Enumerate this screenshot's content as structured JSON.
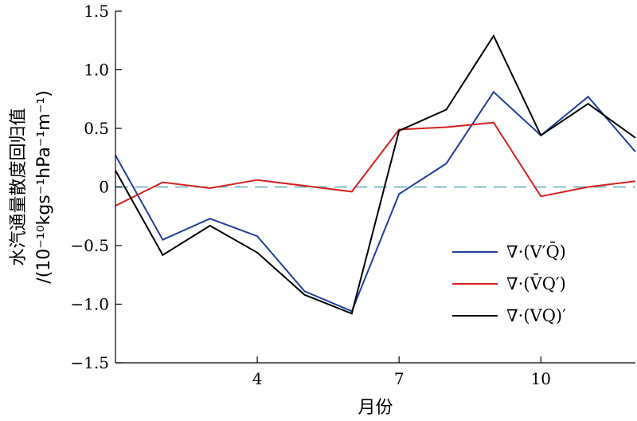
{
  "chart_data": {
    "type": "line",
    "xlabel": "月份",
    "ylabel_line1": "水汽通量散度回归值",
    "ylabel_line2": "/(10⁻¹⁰kgs⁻¹hPa⁻¹m⁻¹)",
    "xlim": [
      1,
      12
    ],
    "ylim": [
      -1.5,
      1.5
    ],
    "xticks": [
      4,
      7,
      10
    ],
    "yticks": [
      {
        "value": 1.5,
        "label": "1.5"
      },
      {
        "value": 1.0,
        "label": "1.0"
      },
      {
        "value": 0.5,
        "label": "0.5"
      },
      {
        "value": 0.0,
        "label": "0"
      },
      {
        "value": -0.5,
        "label": "−0.5"
      },
      {
        "value": -1.0,
        "label": "−1.0"
      },
      {
        "value": -1.5,
        "label": "−1.5"
      }
    ],
    "x": [
      1,
      2,
      3,
      4,
      5,
      6,
      7,
      8,
      9,
      10,
      11,
      12
    ],
    "reference_line": {
      "y": 0,
      "style": "dashed",
      "color": "#5fa8b8"
    },
    "legend_position": "lower-right",
    "series": [
      {
        "name": "∇·(V′Q̄)",
        "color": "#1f3f9a",
        "values": [
          0.27,
          -0.45,
          -0.27,
          -0.42,
          -0.89,
          -1.06,
          -0.06,
          0.2,
          0.81,
          0.44,
          0.77,
          0.3
        ]
      },
      {
        "name": "∇·(V̄Q′)",
        "color": "#d42020",
        "values": [
          -0.16,
          0.04,
          -0.01,
          0.06,
          0.01,
          -0.04,
          0.49,
          0.51,
          0.55,
          -0.08,
          0.0,
          0.05
        ]
      },
      {
        "name": "∇·(VQ)′",
        "color": "#000000",
        "values": [
          0.14,
          -0.58,
          -0.33,
          -0.56,
          -0.92,
          -1.08,
          0.48,
          0.66,
          1.29,
          0.44,
          0.71,
          0.42
        ]
      }
    ]
  }
}
